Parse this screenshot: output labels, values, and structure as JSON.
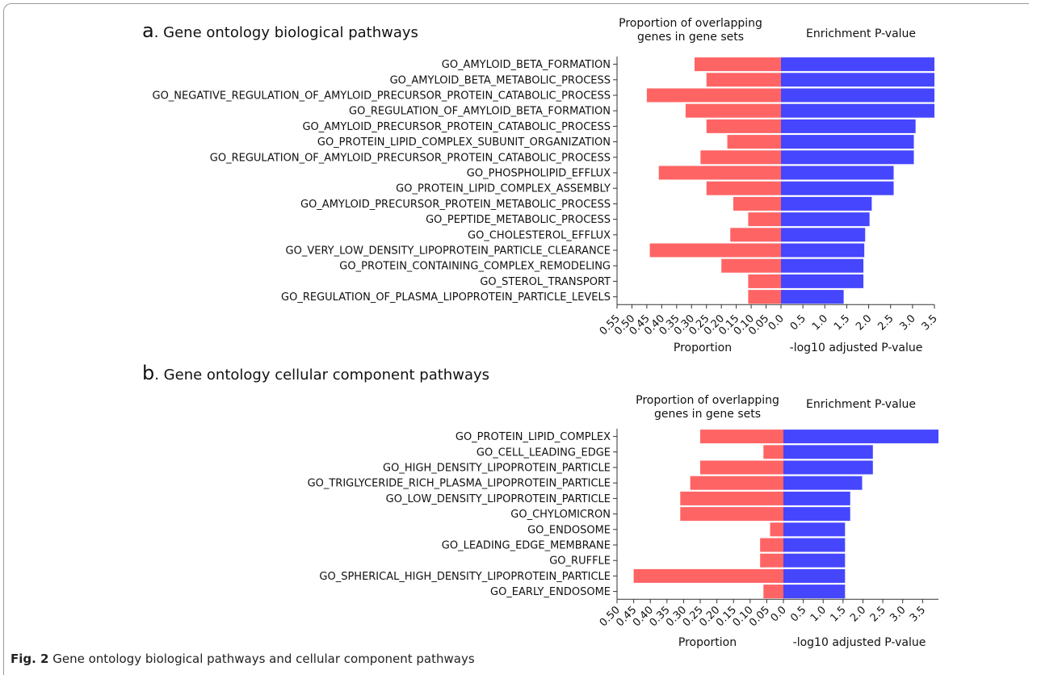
{
  "figure": {
    "caption_label": "Fig. 2",
    "caption_text": "Gene ontology biological pathways and cellular component pathways"
  },
  "colors": {
    "proportion_bar": "#ff6464",
    "pvalue_bar": "#4646ff",
    "axis": "#333333"
  },
  "chart_data": [
    {
      "type": "bar",
      "orientation": "horizontal-diverging",
      "panel_letter": "a",
      "title": ". Gene ontology biological pathways",
      "left_header": [
        "Proportion of overlapping",
        "genes in gene sets"
      ],
      "right_header": "Enrichment P-value",
      "left_xlabel": "Proportion",
      "right_xlabel": "-log10 adjusted P-value",
      "left_ticks": [
        "0.55",
        "0.50",
        "0.45",
        "0.40",
        "0.35",
        "0.30",
        "0.25",
        "0.20",
        "0.15",
        "0.10",
        "0.05",
        "0.0"
      ],
      "right_ticks": [
        "0.0",
        "0.5",
        "1.0",
        "1.5",
        "2.0",
        "2.5",
        "3.0",
        "3.5"
      ],
      "left_xlim": [
        0,
        0.55
      ],
      "right_xlim": [
        0,
        3.5
      ],
      "categories": [
        "GO_AMYLOID_BETA_FORMATION",
        "GO_AMYLOID_BETA_METABOLIC_PROCESS",
        "GO_NEGATIVE_REGULATION_OF_AMYLOID_PRECURSOR_PROTEIN_CATABOLIC_PROCESS",
        "GO_REGULATION_OF_AMYLOID_BETA_FORMATION",
        "GO_AMYLOID_PRECURSOR_PROTEIN_CATABOLIC_PROCESS",
        "GO_PROTEIN_LIPID_COMPLEX_SUBUNIT_ORGANIZATION",
        "GO_REGULATION_OF_AMYLOID_PRECURSOR_PROTEIN_CATABOLIC_PROCESS",
        "GO_PHOSPHOLIPID_EFFLUX",
        "GO_PROTEIN_LIPID_COMPLEX_ASSEMBLY",
        "GO_AMYLOID_PRECURSOR_PROTEIN_METABOLIC_PROCESS",
        "GO_PEPTIDE_METABOLIC_PROCESS",
        "GO_CHOLESTEROL_EFFLUX",
        "GO_VERY_LOW_DENSITY_LIPOPROTEIN_PARTICLE_CLEARANCE",
        "GO_PROTEIN_CONTAINING_COMPLEX_REMODELING",
        "GO_STEROL_TRANSPORT",
        "GO_REGULATION_OF_PLASMA_LIPOPROTEIN_PARTICLE_LEVELS"
      ],
      "series": [
        {
          "name": "Proportion",
          "values": [
            0.29,
            0.25,
            0.45,
            0.32,
            0.25,
            0.18,
            0.27,
            0.41,
            0.25,
            0.16,
            0.11,
            0.17,
            0.44,
            0.2,
            0.11,
            0.11
          ]
        },
        {
          "name": "-log10 adjusted P-value",
          "values": [
            3.5,
            3.5,
            3.5,
            3.5,
            3.07,
            3.03,
            3.03,
            2.57,
            2.57,
            2.07,
            2.02,
            1.92,
            1.9,
            1.88,
            1.88,
            1.43
          ]
        }
      ]
    },
    {
      "type": "bar",
      "orientation": "horizontal-diverging",
      "panel_letter": "b",
      "title": ". Gene ontology cellular component pathways",
      "left_header": [
        "Proportion of overlapping",
        "genes in gene sets"
      ],
      "right_header": "Enrichment P-value",
      "left_xlabel": "Proportion",
      "right_xlabel": "-log10 adjusted P-value",
      "left_ticks": [
        "0.50",
        "0.45",
        "0.40",
        "0.35",
        "0.30",
        "0.25",
        "0.20",
        "0.15",
        "0.10",
        "0.05",
        "0.0"
      ],
      "right_ticks": [
        "0.0",
        "0.5",
        "1.0",
        "1.5",
        "2.0",
        "2.5",
        "3.0",
        "3.5"
      ],
      "left_xlim": [
        0,
        0.5
      ],
      "right_xlim": [
        0,
        3.9
      ],
      "categories": [
        "GO_PROTEIN_LIPID_COMPLEX",
        "GO_CELL_LEADING_EDGE",
        "GO_HIGH_DENSITY_LIPOPROTEIN_PARTICLE",
        "GO_TRIGLYCERIDE_RICH_PLASMA_LIPOPROTEIN_PARTICLE",
        "GO_LOW_DENSITY_LIPOPROTEIN_PARTICLE",
        "GO_CHYLOMICRON",
        "GO_ENDOSOME",
        "GO_LEADING_EDGE_MEMBRANE",
        "GO_RUFFLE",
        "GO_SPHERICAL_HIGH_DENSITY_LIPOPROTEIN_PARTICLE",
        "GO_EARLY_ENDOSOME"
      ],
      "series": [
        {
          "name": "Proportion",
          "values": [
            0.25,
            0.06,
            0.25,
            0.28,
            0.31,
            0.31,
            0.04,
            0.07,
            0.07,
            0.45,
            0.06
          ]
        },
        {
          "name": "-log10 adjusted P-value",
          "values": [
            3.9,
            2.25,
            2.25,
            1.98,
            1.68,
            1.68,
            1.55,
            1.55,
            1.55,
            1.55,
            1.55
          ]
        }
      ]
    }
  ]
}
